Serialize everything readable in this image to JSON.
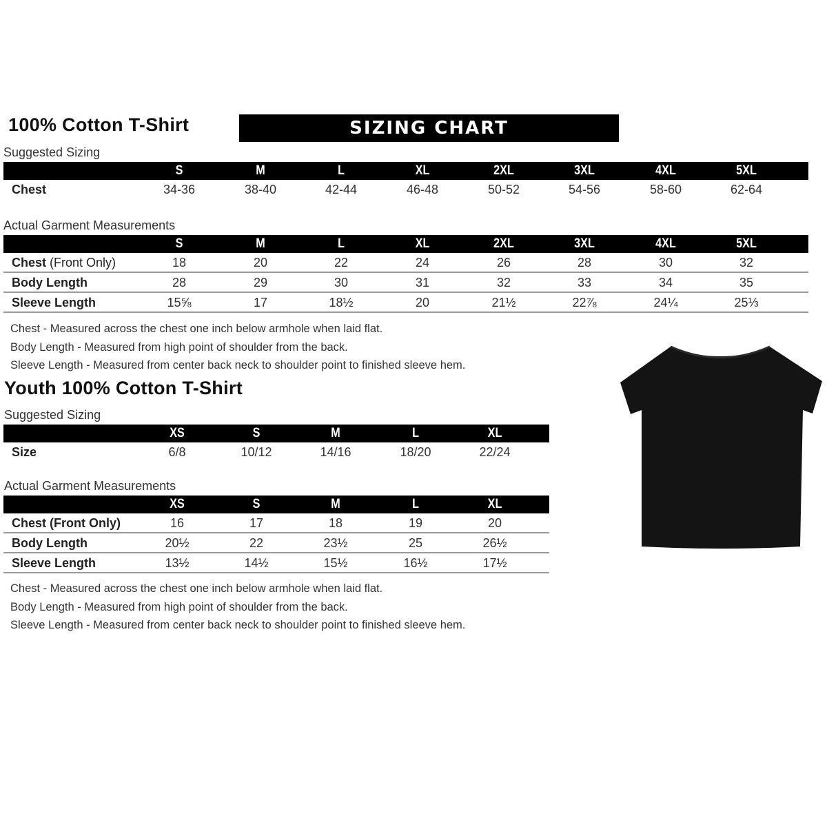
{
  "adult": {
    "title": "100% Cotton T-Shirt",
    "banner": "SIZING CHART",
    "suggested_label": "Suggested Sizing",
    "sizes": [
      "S",
      "M",
      "L",
      "XL",
      "2XL",
      "3XL",
      "4XL",
      "5XL"
    ],
    "suggested_rows": [
      {
        "label": "Chest",
        "values": [
          "34-36",
          "38-40",
          "42-44",
          "46-48",
          "50-52",
          "54-56",
          "58-60",
          "62-64"
        ]
      }
    ],
    "actual_label": "Actual Garment Measurements",
    "actual_rows": [
      {
        "label": "Chest",
        "label_suffix": " (Front Only)",
        "values": [
          "18",
          "20",
          "22",
          "24",
          "26",
          "28",
          "30",
          "32"
        ]
      },
      {
        "label": "Body Length",
        "values": [
          "28",
          "29",
          "30",
          "31",
          "32",
          "33",
          "34",
          "35"
        ]
      },
      {
        "label": "Sleeve Length",
        "values": [
          "15⅝",
          "17",
          "18½",
          "20",
          "21½",
          "22⅞",
          "24¼",
          "25⅓"
        ]
      }
    ],
    "notes": [
      "Chest - Measured across the chest one inch below armhole when laid flat.",
      "Body Length - Measured from high point of shoulder from the back.",
      "Sleeve Length - Measured from center back neck to shoulder point to finished sleeve hem."
    ]
  },
  "youth": {
    "title": "Youth 100% Cotton T-Shirt",
    "suggested_label": "Suggested Sizing",
    "sizes": [
      "XS",
      "S",
      "M",
      "L",
      "XL"
    ],
    "suggested_rows": [
      {
        "label": "Size",
        "values": [
          "6/8",
          "10/12",
          "14/16",
          "18/20",
          "22/24"
        ]
      }
    ],
    "actual_label": "Actual Garment Measurements",
    "actual_rows": [
      {
        "label": "Chest (Front Only)",
        "values": [
          "16",
          "17",
          "18",
          "19",
          "20"
        ]
      },
      {
        "label": "Body Length",
        "values": [
          "20½",
          "22",
          "23½",
          "25",
          "26½"
        ]
      },
      {
        "label": "Sleeve Length",
        "values": [
          "13½",
          "14½",
          "15½",
          "16½",
          "17½"
        ]
      }
    ],
    "notes": [
      "Chest - Measured across the chest one inch below armhole when laid flat.",
      "Body Length - Measured from high point of shoulder from the back.",
      "Sleeve Length - Measured from center back neck to shoulder point to finished sleeve hem."
    ]
  },
  "colors": {
    "header_bg": "#000000",
    "shirt": "#111111",
    "divider": "#999999"
  }
}
